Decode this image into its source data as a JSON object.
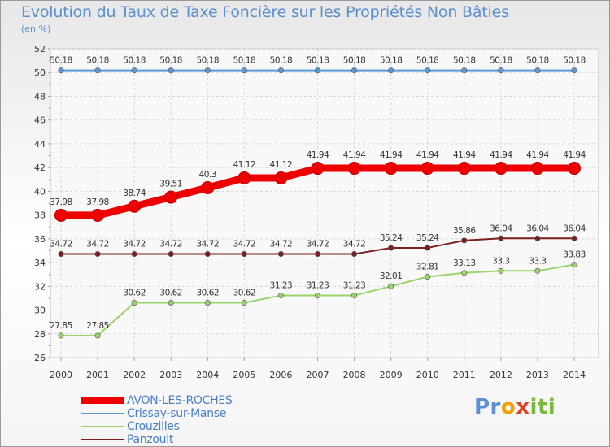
{
  "chart_data": {
    "type": "line",
    "title": "Evolution du Taux de Taxe Foncière sur les Propriétés Non Bâties",
    "ylabel": "(en %)",
    "ylim": [
      26,
      52
    ],
    "yticks": [
      "26",
      "28",
      "30",
      "32",
      "34",
      "36",
      "38",
      "40",
      "42",
      "44",
      "46",
      "48",
      "50",
      "52"
    ],
    "categories": [
      "2000",
      "2001",
      "2002",
      "2003",
      "2004",
      "2005",
      "2006",
      "2007",
      "2008",
      "2009",
      "2010",
      "2011",
      "2012",
      "2013",
      "2014"
    ],
    "series": [
      {
        "name": "Crissay-sur-Manse",
        "color": "#5b9bd5",
        "values": [
          50.18,
          50.18,
          50.18,
          50.18,
          50.18,
          50.18,
          50.18,
          50.18,
          50.18,
          50.18,
          50.18,
          50.18,
          50.18,
          50.18,
          50.18
        ],
        "labels": [
          "50.18",
          "50.18",
          "50.18",
          "50.18",
          "50.18",
          "50.18",
          "50.18",
          "50.18",
          "50.18",
          "50.18",
          "50.18",
          "50.18",
          "50.18",
          "50.18",
          "50.18"
        ]
      },
      {
        "name": "AVON-LES-ROCHES",
        "color": "#ee0000",
        "values": [
          37.98,
          37.98,
          38.74,
          39.51,
          40.3,
          41.12,
          41.12,
          41.94,
          41.94,
          41.94,
          41.94,
          41.94,
          41.94,
          41.94,
          41.94
        ],
        "labels": [
          "37.98",
          "37.98",
          "38.74",
          "39.51",
          "40.3",
          "41.12",
          "41.12",
          "41.94",
          "41.94",
          "41.94",
          "41.94",
          "41.94",
          "41.94",
          "41.94",
          "41.94"
        ]
      },
      {
        "name": "Panzoult",
        "color": "#7a1f1f",
        "values": [
          34.72,
          34.72,
          34.72,
          34.72,
          34.72,
          34.72,
          34.72,
          34.72,
          34.72,
          35.24,
          35.24,
          35.86,
          36.04,
          36.04,
          36.04
        ],
        "labels": [
          "34.72",
          "34.72",
          "34.72",
          "34.72",
          "34.72",
          "34.72",
          "34.72",
          "34.72",
          "34.72",
          "35.24",
          "35.24",
          "35.86",
          "36.04",
          "36.04",
          "36.04"
        ]
      },
      {
        "name": "Crouzilles",
        "color": "#99d36a",
        "values": [
          27.85,
          27.85,
          30.62,
          30.62,
          30.62,
          30.62,
          31.23,
          31.23,
          31.23,
          32.01,
          32.81,
          33.13,
          33.3,
          33.3,
          33.83
        ],
        "labels": [
          "27.85",
          "27.85",
          "30.62",
          "30.62",
          "30.62",
          "30.62",
          "31.23",
          "31.23",
          "31.23",
          "32.01",
          "32.81",
          "33.13",
          "33.3",
          "33.3",
          "33.83"
        ]
      }
    ],
    "legend_order": [
      "AVON-LES-ROCHES",
      "Crissay-sur-Manse",
      "Crouzilles",
      "Panzoult"
    ],
    "legend_colors": {
      "AVON-LES-ROCHES": "#ee0000",
      "Crissay-sur-Manse": "#5b9bd5",
      "Crouzilles": "#99d36a",
      "Panzoult": "#7a1f1f"
    }
  },
  "legend": {
    "items": [
      "AVON-LES-ROCHES",
      "Crissay-sur-Manse",
      "Crouzilles",
      "Panzoult"
    ]
  },
  "brand": {
    "p": "Pr",
    "o": "o",
    "x": "x",
    "i": "iti"
  }
}
